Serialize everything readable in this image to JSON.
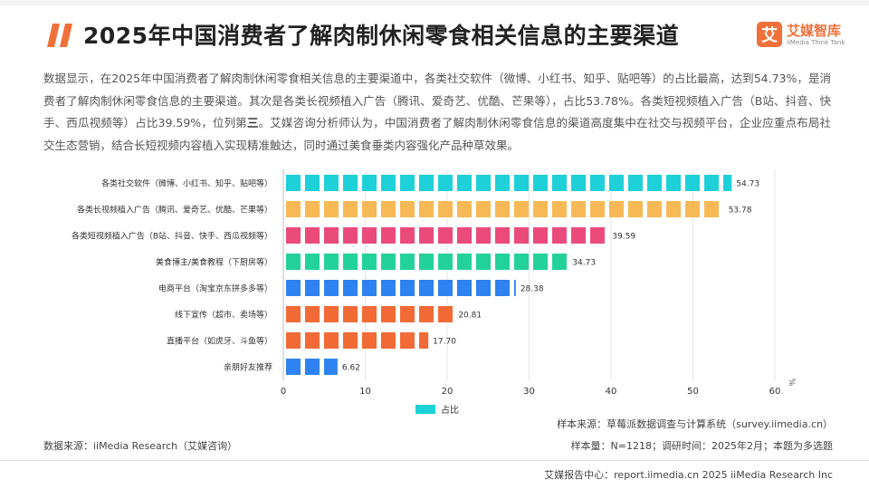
{
  "header": {
    "title": "2025年中国消费者了解肉制休闲零食相关信息的主要渠道",
    "logo_mark": "艾",
    "logo_name": "艾媒智库",
    "logo_sub": "iiMedia Think Tank"
  },
  "description": {
    "p1": "数据显示，在2025年中国消费者了解肉制休闲零食相关信息的主要渠道中，各类社交软件（微博、小红书、知乎、贴吧等）的占比最高，达到54.73%，是消费者了解肉制休闲零食信息的主要渠道。其次是各类长视频植入广告（腾讯、爱奇艺、优酷、芒果等），占比53.78%。各类短视频植入广告（B站、抖音、快手、西瓜视频等）占比39.59%，位列第",
    "p1_bold": "三",
    "p2": "。艾媒咨询分析师认为，中国消费者了解肉制休闲零食信息的渠道高度集中在社交与视频平台，企业应重点布局社交生态营销，结合长短视频内容植入实现精准触达，同时通过美食垂类内容强化产品种草效果。"
  },
  "chart_data": {
    "type": "bar",
    "orientation": "horizontal",
    "categories": [
      "各类社交软件（微博、小红书、知乎、贴吧等）",
      "各类长视频植入广告（腾讯、爱奇艺、优酷、芒果等）",
      "各类短视频植入广告（B站、抖音、快手、西瓜视频等）",
      "美食博主/美食教程（下厨房等）",
      "电商平台（淘宝京东拼多多等）",
      "线下宣传（超市、卖场等）",
      "直播平台（如虎牙、斗鱼等）",
      "亲朋好友推荐"
    ],
    "series": [
      {
        "name": "占比",
        "values": [
          54.73,
          53.78,
          39.59,
          34.73,
          28.38,
          20.81,
          17.7,
          6.62
        ]
      }
    ],
    "value_labels": [
      "54.73",
      "53.78",
      "39.59",
      "34.73",
      "28.38",
      "20.81",
      "17.70",
      "6.62"
    ],
    "bar_colors": [
      "#1ed0d8",
      "#f7b955",
      "#ea4b7a",
      "#23d19a",
      "#2e83f0",
      "#f26a36",
      "#f26a36",
      "#2e83f0"
    ],
    "legend_color": "#1ed0d8",
    "xlim": [
      0,
      60
    ],
    "xticks": [
      "0",
      "10",
      "20",
      "30",
      "40",
      "50",
      "60"
    ],
    "unit_label": "%",
    "legend_position": "bottom",
    "grid": true
  },
  "notes": {
    "source": "数据来源：iiMedia Research（艾媒咨询）",
    "sample_source": "样本来源：草莓派数据调查与计算系统（survey.iimedia.cn）",
    "sample_size": "样本量：N=1218；调研时间：2025年2月；本题为多选题"
  },
  "footer": {
    "text": "艾媒报告中心：report.iimedia.cn   2025 iiMedia Research Inc"
  }
}
